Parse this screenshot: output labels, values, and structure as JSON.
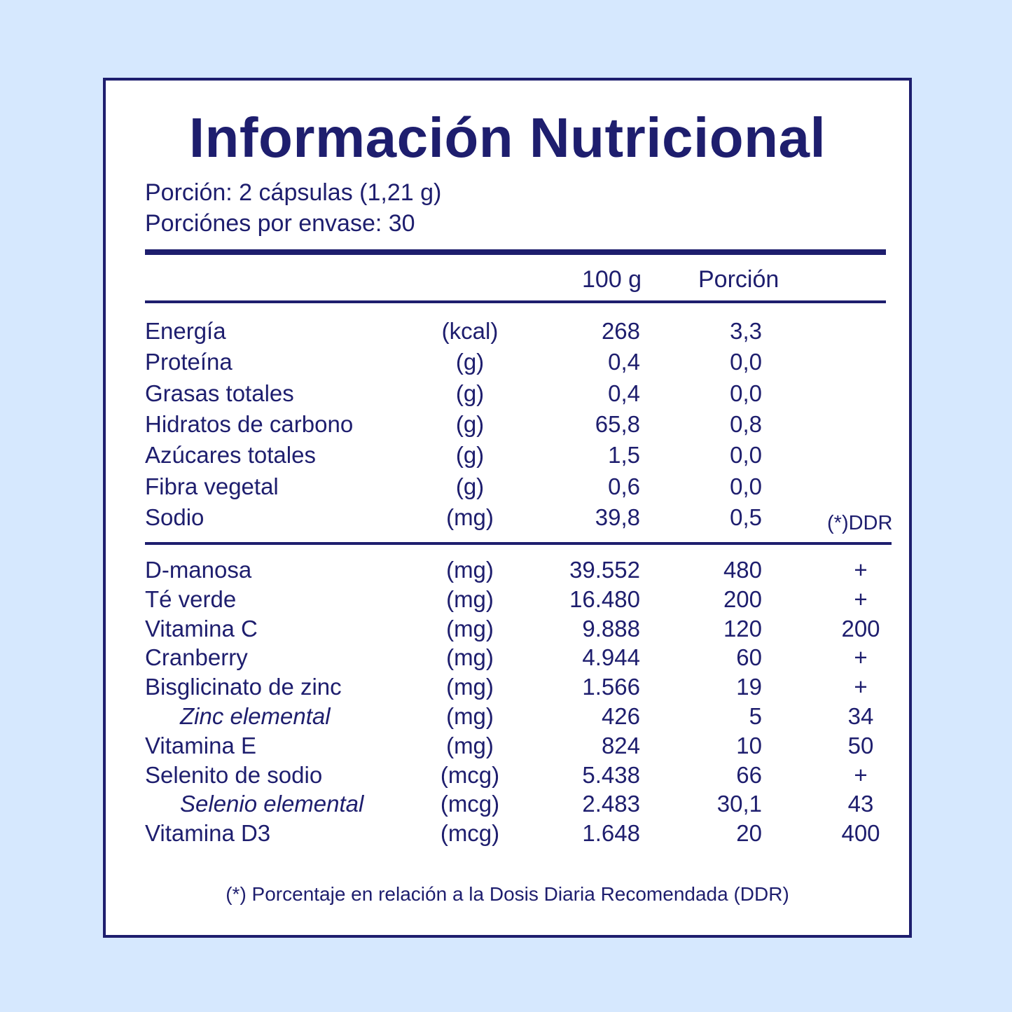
{
  "title": "Información Nutricional",
  "serving_size": "Porción: 2 cápsulas (1,21 g)",
  "servings_per_container": "Porciónes por envase: 30",
  "headers": {
    "per_100g": "100 g",
    "per_portion": "Porción",
    "ddr": "(*)DDR"
  },
  "nutrients": [
    {
      "name": "Energía",
      "unit": "(kcal)",
      "per_100g": "268",
      "per_portion": "3,3"
    },
    {
      "name": "Proteína",
      "unit": "(g)",
      "per_100g": "0,4",
      "per_portion": "0,0"
    },
    {
      "name": "Grasas totales",
      "unit": "(g)",
      "per_100g": "0,4",
      "per_portion": "0,0"
    },
    {
      "name": "Hidratos de carbono",
      "unit": "(g)",
      "per_100g": "65,8",
      "per_portion": "0,8"
    },
    {
      "name": "Azúcares totales",
      "unit": "(g)",
      "per_100g": "1,5",
      "per_portion": "0,0"
    },
    {
      "name": "Fibra vegetal",
      "unit": "(g)",
      "per_100g": "0,6",
      "per_portion": "0,0"
    },
    {
      "name": "Sodio",
      "unit": "(mg)",
      "per_100g": "39,8",
      "per_portion": "0,5"
    }
  ],
  "ingredients": [
    {
      "name": "D-manosa",
      "unit": "(mg)",
      "per_100g": "39.552",
      "per_portion": "480",
      "ddr": "+"
    },
    {
      "name": "Té verde",
      "unit": "(mg)",
      "per_100g": "16.480",
      "per_portion": "200",
      "ddr": "+"
    },
    {
      "name": "Vitamina C",
      "unit": "(mg)",
      "per_100g": "9.888",
      "per_portion": "120",
      "ddr": "200"
    },
    {
      "name": "Cranberry",
      "unit": "(mg)",
      "per_100g": "4.944",
      "per_portion": "60",
      "ddr": "+"
    },
    {
      "name": "Bisglicinato de zinc",
      "unit": "(mg)",
      "per_100g": "1.566",
      "per_portion": "19",
      "ddr": "+"
    },
    {
      "name": "Zinc elemental",
      "unit": "(mg)",
      "per_100g": "426",
      "per_portion": "5",
      "ddr": "34"
    },
    {
      "name": "Vitamina E",
      "unit": "(mg)",
      "per_100g": "824",
      "per_portion": "10",
      "ddr": "50"
    },
    {
      "name": "Selenito de sodio",
      "unit": "(mcg)",
      "per_100g": "5.438",
      "per_portion": "66",
      "ddr": "+"
    },
    {
      "name": "Selenio elemental",
      "unit": "(mcg)",
      "per_100g": "2.483",
      "per_portion": "30,1",
      "ddr": "43"
    },
    {
      "name": "Vitamina D3",
      "unit": "(mcg)",
      "per_100g": "1.648",
      "per_portion": "20",
      "ddr": "400"
    }
  ],
  "footnote": "(*) Porcentaje en relación a la Dosis Diaria Recomendada (DDR)",
  "colors": {
    "text": "#1e1e6e",
    "background": "#d6e8fe",
    "panel": "#ffffff"
  }
}
